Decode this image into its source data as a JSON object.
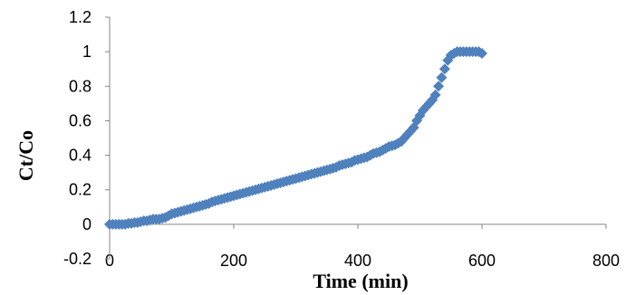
{
  "chart_data": {
    "type": "scatter",
    "title": "",
    "xlabel": "Time (min)",
    "ylabel": "Ct/Co",
    "xlim": [
      0,
      800
    ],
    "ylim": [
      -0.2,
      1.2
    ],
    "xticks": [
      "0",
      "200",
      "400",
      "600",
      "800"
    ],
    "yticks": [
      "-0.2",
      "0",
      "0.2",
      "0.4",
      "0.6",
      "0.8",
      "1",
      "1.2"
    ],
    "grid": false,
    "legend": "none",
    "marker": "diamond",
    "color": "#4f81bd",
    "series": [
      {
        "x": [
          0,
          5,
          10,
          15,
          20,
          25,
          30,
          35,
          40,
          45,
          50,
          55,
          60,
          65,
          70,
          75,
          80,
          85,
          90,
          95,
          100,
          105,
          110,
          115,
          120,
          125,
          130,
          135,
          140,
          145,
          150,
          155,
          160,
          165,
          170,
          175,
          180,
          185,
          190,
          195,
          200,
          205,
          210,
          215,
          220,
          225,
          230,
          235,
          240,
          245,
          250,
          255,
          260,
          265,
          270,
          275,
          280,
          285,
          290,
          295,
          300,
          305,
          310,
          315,
          320,
          325,
          330,
          335,
          340,
          345,
          350,
          355,
          360,
          365,
          370,
          375,
          380,
          385,
          390,
          395,
          400,
          405,
          410,
          415,
          420,
          425,
          430,
          435,
          440,
          445,
          450,
          455,
          460,
          465,
          470,
          475,
          480,
          485,
          490,
          495,
          500,
          505,
          510,
          515,
          520,
          525,
          530,
          535,
          540,
          545,
          550,
          555,
          560,
          565,
          570,
          575,
          580,
          585,
          590,
          595,
          600
        ],
        "y": [
          0,
          0,
          0,
          0,
          0,
          0,
          0.005,
          0.005,
          0.01,
          0.01,
          0.015,
          0.02,
          0.02,
          0.025,
          0.03,
          0.03,
          0.03,
          0.035,
          0.04,
          0.05,
          0.06,
          0.065,
          0.07,
          0.075,
          0.08,
          0.085,
          0.09,
          0.095,
          0.1,
          0.105,
          0.11,
          0.115,
          0.12,
          0.13,
          0.135,
          0.14,
          0.145,
          0.15,
          0.155,
          0.16,
          0.165,
          0.17,
          0.175,
          0.18,
          0.185,
          0.19,
          0.195,
          0.2,
          0.205,
          0.21,
          0.215,
          0.22,
          0.225,
          0.23,
          0.235,
          0.24,
          0.245,
          0.25,
          0.255,
          0.26,
          0.265,
          0.27,
          0.275,
          0.28,
          0.285,
          0.29,
          0.295,
          0.3,
          0.305,
          0.31,
          0.315,
          0.32,
          0.325,
          0.33,
          0.34,
          0.345,
          0.35,
          0.355,
          0.36,
          0.37,
          0.375,
          0.38,
          0.385,
          0.39,
          0.4,
          0.41,
          0.415,
          0.42,
          0.43,
          0.44,
          0.45,
          0.455,
          0.46,
          0.47,
          0.48,
          0.5,
          0.52,
          0.54,
          0.56,
          0.6,
          0.63,
          0.66,
          0.68,
          0.7,
          0.72,
          0.75,
          0.8,
          0.85,
          0.9,
          0.95,
          0.98,
          0.99,
          1.0,
          1.0,
          1.0,
          1.0,
          1.0,
          1.0,
          1.0,
          1.0,
          0.99
        ]
      }
    ]
  }
}
